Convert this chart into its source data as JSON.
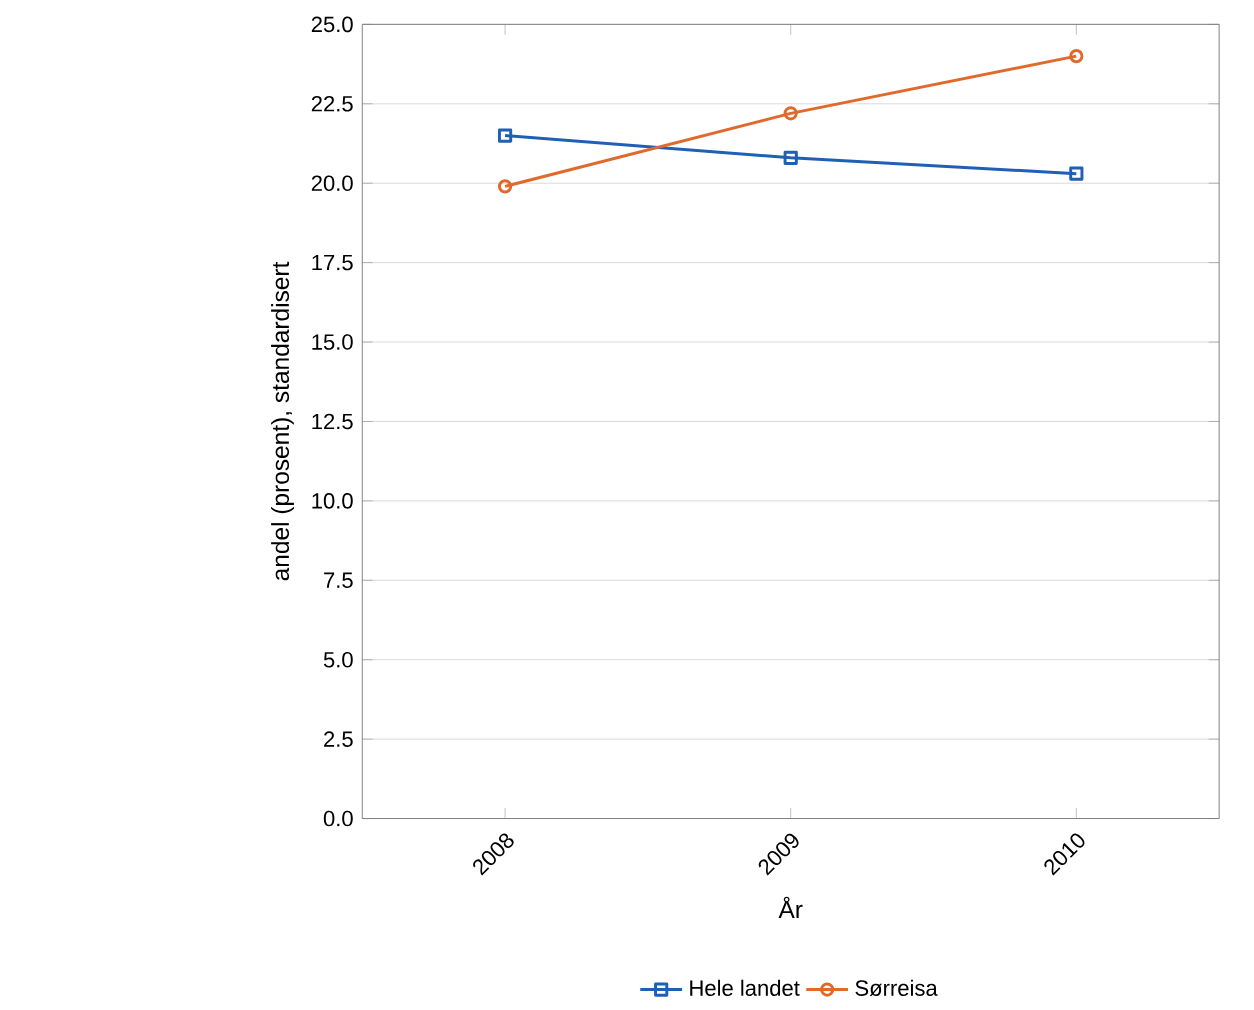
{
  "chart_data": {
    "type": "line",
    "xlabel": "År",
    "ylabel": "andel (prosent), standardisert",
    "categories": [
      "2008",
      "2009",
      "2010"
    ],
    "series": [
      {
        "name": "Hele landet",
        "color": "#1f5fb4",
        "marker": "square",
        "values": [
          21.5,
          20.8,
          20.3
        ]
      },
      {
        "name": "Sørreisa",
        "color": "#e06a2c",
        "marker": "circle",
        "values": [
          19.9,
          22.2,
          24.0
        ]
      }
    ],
    "ylim": [
      0,
      25
    ],
    "yticks": [
      {
        "value": 0,
        "label": "0.0"
      },
      {
        "value": 2.5,
        "label": "2.5"
      },
      {
        "value": 5,
        "label": "5.0"
      },
      {
        "value": 7.5,
        "label": "7.5"
      },
      {
        "value": 10,
        "label": "10.0"
      },
      {
        "value": 12.5,
        "label": "12.5"
      },
      {
        "value": 15,
        "label": "15.0"
      },
      {
        "value": 17.5,
        "label": "17.5"
      },
      {
        "value": 20,
        "label": "20.0"
      },
      {
        "value": 22.5,
        "label": "22.5"
      },
      {
        "value": 25,
        "label": "25.0"
      }
    ],
    "grid": "y",
    "legend": "bottom",
    "line_style": "solid"
  }
}
